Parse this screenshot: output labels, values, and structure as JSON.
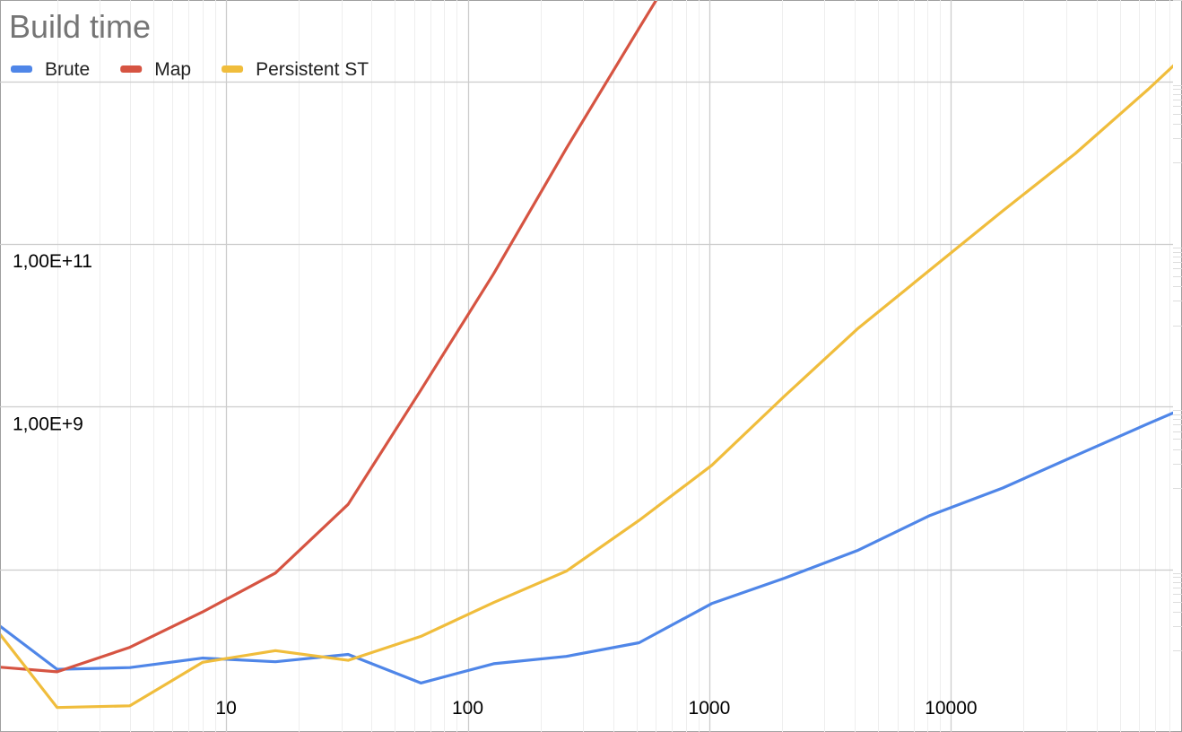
{
  "chart_data": {
    "type": "line",
    "title": "Build time",
    "xlabel": "",
    "ylabel": "",
    "x_scale": "log",
    "y_scale": "log",
    "xlim": [
      1.16,
      83000
    ],
    "ylim": [
      100000,
      100000000000000
    ],
    "grid": true,
    "legend_position": "top-left",
    "x_tick_labels": [
      {
        "value": 10,
        "label": "10"
      },
      {
        "value": 100,
        "label": "100"
      },
      {
        "value": 1000,
        "label": "1000"
      },
      {
        "value": 10000,
        "label": "10000"
      }
    ],
    "y_tick_labels": [
      {
        "value": 100000000000,
        "label": "1,00E+11"
      },
      {
        "value": 1000000000,
        "label": "1,00E+9"
      }
    ],
    "series": [
      {
        "name": "Brute",
        "color": "#4f86e8",
        "points": [
          [
            1,
            2800000
          ],
          [
            2,
            590000
          ],
          [
            4,
            620000
          ],
          [
            8,
            810000
          ],
          [
            16,
            730000
          ],
          [
            32,
            900000
          ],
          [
            64,
            400000
          ],
          [
            128,
            690000
          ],
          [
            256,
            850000
          ],
          [
            512,
            1250000
          ],
          [
            1024,
            3800000
          ],
          [
            2048,
            7800000
          ],
          [
            4096,
            17000000
          ],
          [
            8192,
            46000000
          ],
          [
            16384,
            100000000
          ],
          [
            32768,
            250000000
          ],
          [
            65536,
            620000000
          ],
          [
            131072,
            1500000000
          ]
        ]
      },
      {
        "name": "Map",
        "color": "#d65442",
        "points": [
          [
            1,
            650000
          ],
          [
            2,
            550000
          ],
          [
            4,
            1100000
          ],
          [
            8,
            3000000
          ],
          [
            16,
            9000000
          ],
          [
            32,
            63000000
          ],
          [
            64,
            1600000000
          ],
          [
            128,
            43000000000
          ],
          [
            256,
            1500000000000
          ],
          [
            512,
            45000000000000
          ],
          [
            1024,
            1300000000000000
          ]
        ]
      },
      {
        "name": "Persistent ST",
        "color": "#f0bd3c",
        "points": [
          [
            1,
            2800000
          ],
          [
            2,
            200000
          ],
          [
            4,
            210000
          ],
          [
            8,
            720000
          ],
          [
            16,
            1000000
          ],
          [
            32,
            760000
          ],
          [
            64,
            1500000
          ],
          [
            128,
            3900000
          ],
          [
            256,
            9500000
          ],
          [
            512,
            40000000
          ],
          [
            1024,
            190000000
          ],
          [
            2048,
            1350000000
          ],
          [
            4096,
            9000000000
          ],
          [
            8192,
            48000000000
          ],
          [
            16384,
            255000000000
          ],
          [
            32768,
            1300000000000
          ],
          [
            65536,
            8000000000000
          ],
          [
            131072,
            55000000000000
          ]
        ]
      }
    ]
  }
}
